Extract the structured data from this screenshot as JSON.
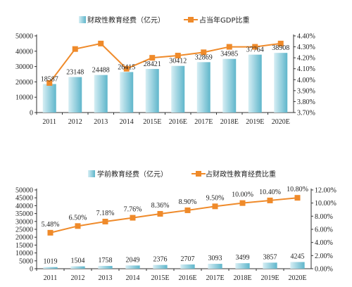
{
  "colors": {
    "bar_light": "#d6eef4",
    "bar_dark": "#5fb6cb",
    "line": "#ef8a2a",
    "axis": "#333333"
  },
  "chart_data": [
    {
      "type": "bar",
      "categories": [
        "2011",
        "2012",
        "2013",
        "2014",
        "2015E",
        "2016E",
        "2017E",
        "2018E",
        "2019E",
        "2020E"
      ],
      "series": [
        {
          "name": "财政性教育经费（亿元）",
          "type": "bar",
          "axis": "left",
          "values": [
            18587,
            23148,
            24488,
            26415,
            28421,
            30412,
            32869,
            34985,
            37764,
            38908
          ],
          "labels": [
            "18587",
            "23148",
            "24488",
            "26415",
            "28421",
            "30412",
            "32869",
            "34985",
            "37764",
            "38908"
          ]
        },
        {
          "name": "占当年GDP比重",
          "type": "line",
          "axis": "right",
          "values": [
            3.97,
            4.28,
            4.33,
            4.1,
            4.2,
            4.22,
            4.25,
            4.3,
            4.3,
            4.33
          ]
        }
      ],
      "y_left": {
        "min": 0,
        "max": 50000,
        "ticks": [
          "0",
          "10000",
          "20000",
          "30000",
          "40000",
          "50000"
        ]
      },
      "y_right": {
        "min": 3.7,
        "max": 4.4,
        "ticks": [
          "3.70%",
          "3.80%",
          "3.90%",
          "4.00%",
          "4.10%",
          "4.20%",
          "4.30%",
          "4.40%"
        ]
      },
      "legend_position": "top"
    },
    {
      "type": "bar",
      "categories": [
        "2011",
        "2012",
        "2013",
        "2014",
        "2015E",
        "2016E",
        "2017E",
        "2018E",
        "2019E",
        "2020E"
      ],
      "series": [
        {
          "name": "学前教育经费（亿元）",
          "type": "bar",
          "axis": "left",
          "values": [
            1019,
            1504,
            1758,
            2049,
            2376,
            2707,
            3093,
            3499,
            3857,
            4245
          ],
          "labels": [
            "1019",
            "1504",
            "1758",
            "2049",
            "2376",
            "2707",
            "3093",
            "3499",
            "3857",
            "4245"
          ]
        },
        {
          "name": "占财政性教育经费比重",
          "type": "line",
          "axis": "right",
          "values": [
            5.48,
            6.5,
            7.18,
            7.76,
            8.36,
            8.9,
            9.5,
            10.0,
            10.4,
            10.8
          ],
          "labels": [
            "5.48%",
            "6.50%",
            "7.18%",
            "7.76%",
            "8.36%",
            "8.90%",
            "9.50%",
            "10.00%",
            "10.40%",
            "10.80%"
          ]
        }
      ],
      "y_left": {
        "min": 0,
        "max": 50000,
        "ticks": [
          "0",
          "5000",
          "10000",
          "15000",
          "20000",
          "25000",
          "30000",
          "35000",
          "40000",
          "45000",
          "50000"
        ]
      },
      "y_right": {
        "min": 0,
        "max": 12,
        "ticks": [
          "0.00%",
          "2.00%",
          "4.00%",
          "6.00%",
          "8.00%",
          "10.00%",
          "12.00%"
        ]
      },
      "legend_position": "top"
    }
  ]
}
